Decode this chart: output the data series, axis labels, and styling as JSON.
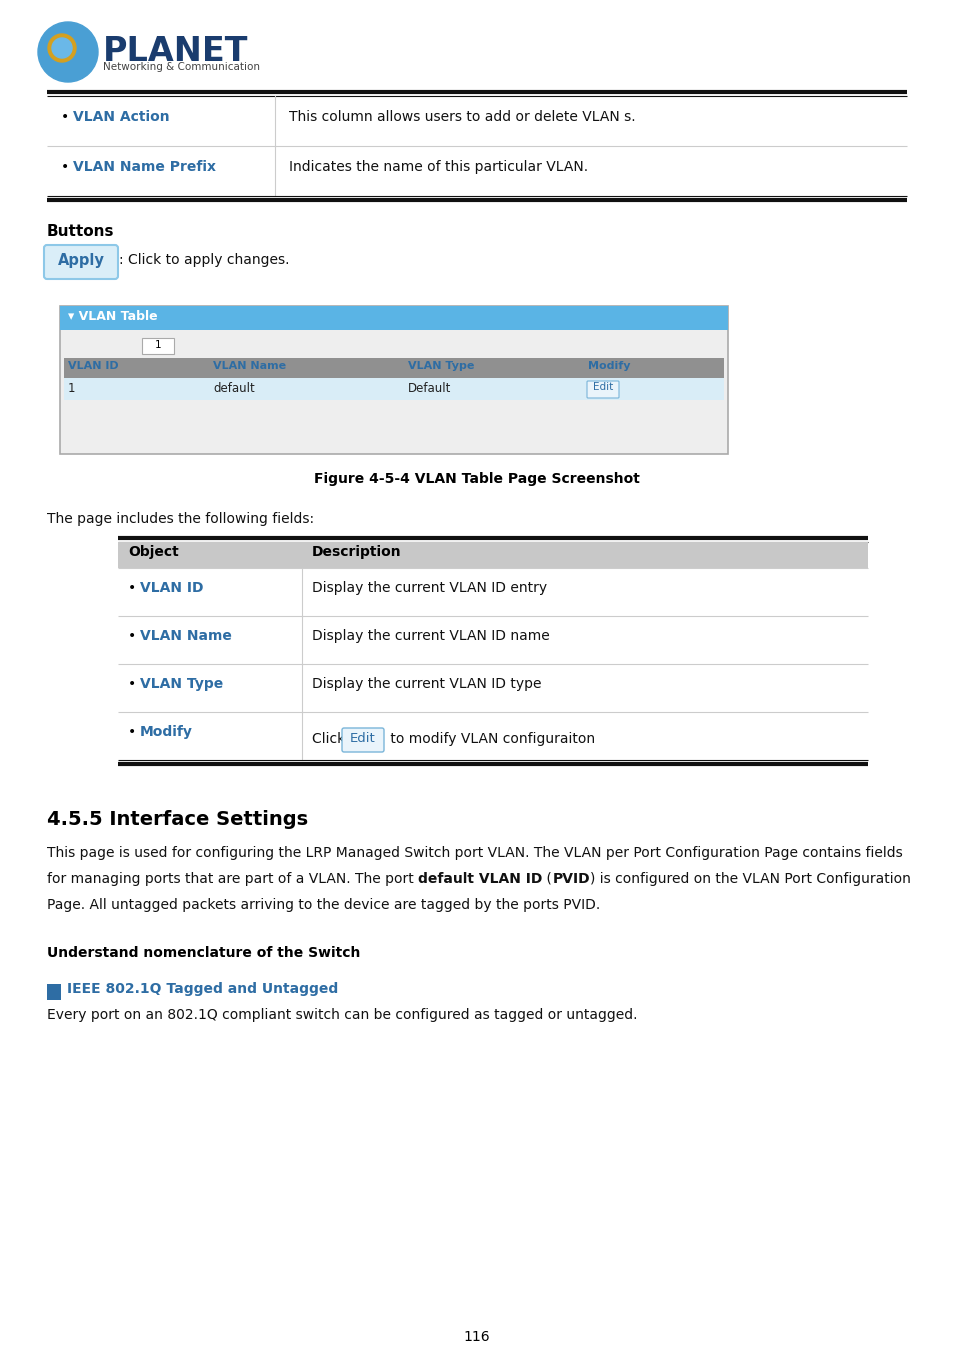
{
  "page_bg": "#ffffff",
  "top_table": {
    "rows": [
      {
        "obj": "VLAN Action",
        "desc": "This column allows users to add or delete VLAN s."
      },
      {
        "obj": "VLAN Name Prefix",
        "desc": "Indicates the name of this particular VLAN."
      }
    ]
  },
  "buttons_label": "Buttons",
  "apply_button_text": "Apply",
  "apply_desc": ": Click to apply changes.",
  "vlan_table_title": "▾ VLAN Table",
  "vlan_table_header": [
    "VLAN ID",
    "VLAN Name",
    "VLAN Type",
    "Modify"
  ],
  "vlan_table_row": [
    "1",
    "default",
    "Default",
    "Edit"
  ],
  "figure_caption": "Figure 4-5-4 VLAN Table Page Screenshot",
  "fields_intro": "The page includes the following fields:",
  "fields_table": {
    "header": [
      "Object",
      "Description"
    ],
    "rows": [
      {
        "obj": "VLAN ID",
        "desc": "Display the current VLAN ID entry"
      },
      {
        "obj": "VLAN Name",
        "desc": "Display the current VLAN ID name"
      },
      {
        "obj": "VLAN Type",
        "desc": "Display the current VLAN ID type"
      },
      {
        "obj": "Modify",
        "desc_prefix": "Click ",
        "desc_btn": "Edit",
        "desc_suffix": " to modify VLAN configuraiton"
      }
    ]
  },
  "section_title": "4.5.5 Interface Settings",
  "section_para1": "This page is used for configuring the LRP Managed Switch port VLAN. The VLAN per Port Configuration Page contains fields",
  "section_para2_normal1": "for managing ports that are part of a VLAN. The port ",
  "section_para2_bold1": "default VLAN ID",
  "section_para2_normal2": " (",
  "section_para2_bold2": "PVID",
  "section_para2_normal3": ") is configured on the VLAN Port Configuration",
  "section_para3": "Page. All untagged packets arriving to the device are tagged by the ports PVID.",
  "understand_title": "Understand nomenclature of the Switch",
  "ieee_title": "IEEE 802.1Q Tagged and Untagged",
  "ieee_para": "Every port on an 802.1Q compliant switch can be configured as tagged or untagged.",
  "page_number": "116",
  "obj_blue": "#2e6da4",
  "edit_btn_bg": "#eaf4fb",
  "edit_btn_border": "#7ab5d9",
  "edit_btn_text": "#2e6da4",
  "apply_btn_bg": "#daeef8",
  "apply_btn_border": "#8dc8e8",
  "apply_btn_text": "#2e6da4",
  "ieee_block_color": "#2e6da4",
  "vlan_panel_border": "#aaaaaa",
  "vlan_panel_bg": "#eeeeee",
  "vlan_hdr_bg": "#5ab4e5",
  "vlan_tbl_hdr_bg": "#909090",
  "vlan_row_bg": "#d9edf7",
  "fields_hdr_bg": "#c8c8c8",
  "double_border_dark": "#111111",
  "single_border": "#cccccc"
}
